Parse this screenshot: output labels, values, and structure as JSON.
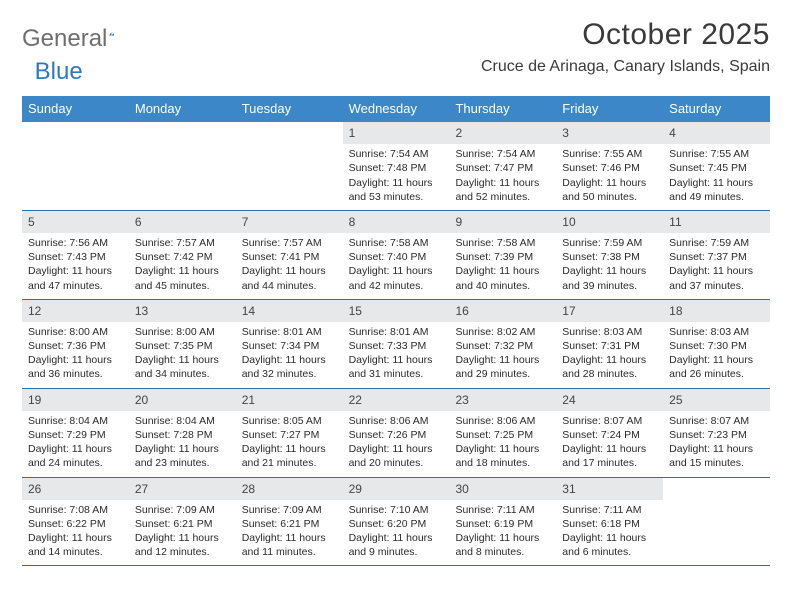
{
  "brand": {
    "part1": "General",
    "part2": "Blue"
  },
  "title": "October 2025",
  "location": "Cruce de Arinaga, Canary Islands, Spain",
  "colors": {
    "header_bg": "#3b87c8",
    "header_text": "#ffffff",
    "daynum_bg": "#e6e8ea",
    "week_border": "#2f6ea8",
    "text": "#2a2a2a",
    "brand_gray": "#6e6e6e",
    "brand_blue": "#2f78bf"
  },
  "day_names": [
    "Sunday",
    "Monday",
    "Tuesday",
    "Wednesday",
    "Thursday",
    "Friday",
    "Saturday"
  ],
  "weeks": [
    [
      null,
      null,
      null,
      {
        "n": "1",
        "sr": "Sunrise: 7:54 AM",
        "ss": "Sunset: 7:48 PM",
        "dl": "Daylight: 11 hours and 53 minutes."
      },
      {
        "n": "2",
        "sr": "Sunrise: 7:54 AM",
        "ss": "Sunset: 7:47 PM",
        "dl": "Daylight: 11 hours and 52 minutes."
      },
      {
        "n": "3",
        "sr": "Sunrise: 7:55 AM",
        "ss": "Sunset: 7:46 PM",
        "dl": "Daylight: 11 hours and 50 minutes."
      },
      {
        "n": "4",
        "sr": "Sunrise: 7:55 AM",
        "ss": "Sunset: 7:45 PM",
        "dl": "Daylight: 11 hours and 49 minutes."
      }
    ],
    [
      {
        "n": "5",
        "sr": "Sunrise: 7:56 AM",
        "ss": "Sunset: 7:43 PM",
        "dl": "Daylight: 11 hours and 47 minutes."
      },
      {
        "n": "6",
        "sr": "Sunrise: 7:57 AM",
        "ss": "Sunset: 7:42 PM",
        "dl": "Daylight: 11 hours and 45 minutes."
      },
      {
        "n": "7",
        "sr": "Sunrise: 7:57 AM",
        "ss": "Sunset: 7:41 PM",
        "dl": "Daylight: 11 hours and 44 minutes."
      },
      {
        "n": "8",
        "sr": "Sunrise: 7:58 AM",
        "ss": "Sunset: 7:40 PM",
        "dl": "Daylight: 11 hours and 42 minutes."
      },
      {
        "n": "9",
        "sr": "Sunrise: 7:58 AM",
        "ss": "Sunset: 7:39 PM",
        "dl": "Daylight: 11 hours and 40 minutes."
      },
      {
        "n": "10",
        "sr": "Sunrise: 7:59 AM",
        "ss": "Sunset: 7:38 PM",
        "dl": "Daylight: 11 hours and 39 minutes."
      },
      {
        "n": "11",
        "sr": "Sunrise: 7:59 AM",
        "ss": "Sunset: 7:37 PM",
        "dl": "Daylight: 11 hours and 37 minutes."
      }
    ],
    [
      {
        "n": "12",
        "sr": "Sunrise: 8:00 AM",
        "ss": "Sunset: 7:36 PM",
        "dl": "Daylight: 11 hours and 36 minutes."
      },
      {
        "n": "13",
        "sr": "Sunrise: 8:00 AM",
        "ss": "Sunset: 7:35 PM",
        "dl": "Daylight: 11 hours and 34 minutes."
      },
      {
        "n": "14",
        "sr": "Sunrise: 8:01 AM",
        "ss": "Sunset: 7:34 PM",
        "dl": "Daylight: 11 hours and 32 minutes."
      },
      {
        "n": "15",
        "sr": "Sunrise: 8:01 AM",
        "ss": "Sunset: 7:33 PM",
        "dl": "Daylight: 11 hours and 31 minutes."
      },
      {
        "n": "16",
        "sr": "Sunrise: 8:02 AM",
        "ss": "Sunset: 7:32 PM",
        "dl": "Daylight: 11 hours and 29 minutes."
      },
      {
        "n": "17",
        "sr": "Sunrise: 8:03 AM",
        "ss": "Sunset: 7:31 PM",
        "dl": "Daylight: 11 hours and 28 minutes."
      },
      {
        "n": "18",
        "sr": "Sunrise: 8:03 AM",
        "ss": "Sunset: 7:30 PM",
        "dl": "Daylight: 11 hours and 26 minutes."
      }
    ],
    [
      {
        "n": "19",
        "sr": "Sunrise: 8:04 AM",
        "ss": "Sunset: 7:29 PM",
        "dl": "Daylight: 11 hours and 24 minutes."
      },
      {
        "n": "20",
        "sr": "Sunrise: 8:04 AM",
        "ss": "Sunset: 7:28 PM",
        "dl": "Daylight: 11 hours and 23 minutes."
      },
      {
        "n": "21",
        "sr": "Sunrise: 8:05 AM",
        "ss": "Sunset: 7:27 PM",
        "dl": "Daylight: 11 hours and 21 minutes."
      },
      {
        "n": "22",
        "sr": "Sunrise: 8:06 AM",
        "ss": "Sunset: 7:26 PM",
        "dl": "Daylight: 11 hours and 20 minutes."
      },
      {
        "n": "23",
        "sr": "Sunrise: 8:06 AM",
        "ss": "Sunset: 7:25 PM",
        "dl": "Daylight: 11 hours and 18 minutes."
      },
      {
        "n": "24",
        "sr": "Sunrise: 8:07 AM",
        "ss": "Sunset: 7:24 PM",
        "dl": "Daylight: 11 hours and 17 minutes."
      },
      {
        "n": "25",
        "sr": "Sunrise: 8:07 AM",
        "ss": "Sunset: 7:23 PM",
        "dl": "Daylight: 11 hours and 15 minutes."
      }
    ],
    [
      {
        "n": "26",
        "sr": "Sunrise: 7:08 AM",
        "ss": "Sunset: 6:22 PM",
        "dl": "Daylight: 11 hours and 14 minutes."
      },
      {
        "n": "27",
        "sr": "Sunrise: 7:09 AM",
        "ss": "Sunset: 6:21 PM",
        "dl": "Daylight: 11 hours and 12 minutes."
      },
      {
        "n": "28",
        "sr": "Sunrise: 7:09 AM",
        "ss": "Sunset: 6:21 PM",
        "dl": "Daylight: 11 hours and 11 minutes."
      },
      {
        "n": "29",
        "sr": "Sunrise: 7:10 AM",
        "ss": "Sunset: 6:20 PM",
        "dl": "Daylight: 11 hours and 9 minutes."
      },
      {
        "n": "30",
        "sr": "Sunrise: 7:11 AM",
        "ss": "Sunset: 6:19 PM",
        "dl": "Daylight: 11 hours and 8 minutes."
      },
      {
        "n": "31",
        "sr": "Sunrise: 7:11 AM",
        "ss": "Sunset: 6:18 PM",
        "dl": "Daylight: 11 hours and 6 minutes."
      },
      null
    ]
  ]
}
